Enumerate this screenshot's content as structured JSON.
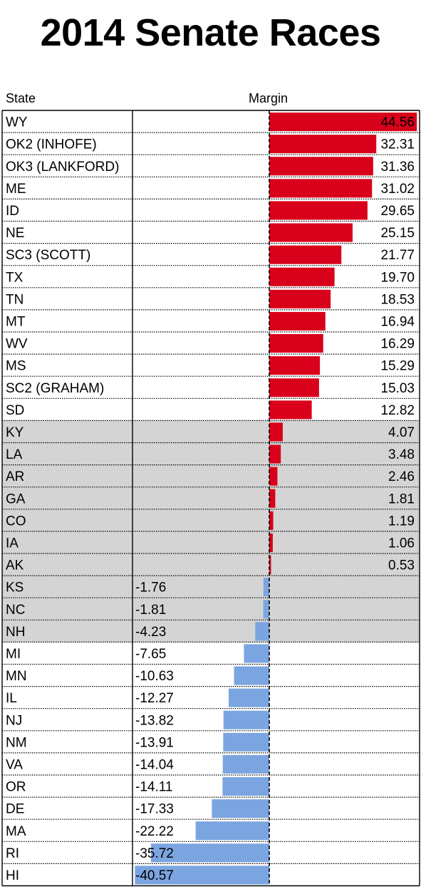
{
  "page": {
    "title": "2014 Senate Races"
  },
  "chart_data": {
    "type": "bar",
    "orientation": "horizontal",
    "title": "2014 Senate Races",
    "column_headers": {
      "category": "State",
      "value": "Margin"
    },
    "colors": {
      "positive": "#d9001b",
      "negative": "#7ba5e0",
      "highlight_row": "#d4d4d4"
    },
    "rows": [
      {
        "state": "WY",
        "value": 44.56,
        "label": "44.56",
        "highlight": false
      },
      {
        "state": "OK2 (INHOFE)",
        "value": 32.31,
        "label": "32.31",
        "highlight": false
      },
      {
        "state": "OK3 (LANKFORD)",
        "value": 31.36,
        "label": "31.36",
        "highlight": false
      },
      {
        "state": "ME",
        "value": 31.02,
        "label": "31.02",
        "highlight": false
      },
      {
        "state": "ID",
        "value": 29.65,
        "label": "29.65",
        "highlight": false
      },
      {
        "state": "NE",
        "value": 25.15,
        "label": "25.15",
        "highlight": false
      },
      {
        "state": "SC3 (SCOTT)",
        "value": 21.77,
        "label": "21.77",
        "highlight": false
      },
      {
        "state": "TX",
        "value": 19.7,
        "label": "19.70",
        "highlight": false
      },
      {
        "state": "TN",
        "value": 18.53,
        "label": "18.53",
        "highlight": false
      },
      {
        "state": "MT",
        "value": 16.94,
        "label": "16.94",
        "highlight": false
      },
      {
        "state": "WV",
        "value": 16.29,
        "label": "16.29",
        "highlight": false
      },
      {
        "state": "MS",
        "value": 15.29,
        "label": "15.29",
        "highlight": false
      },
      {
        "state": "SC2 (GRAHAM)",
        "value": 15.03,
        "label": "15.03",
        "highlight": false
      },
      {
        "state": "SD",
        "value": 12.82,
        "label": "12.82",
        "highlight": false
      },
      {
        "state": "KY",
        "value": 4.07,
        "label": "4.07",
        "highlight": true
      },
      {
        "state": "LA",
        "value": 3.48,
        "label": "3.48",
        "highlight": true
      },
      {
        "state": "AR",
        "value": 2.46,
        "label": "2.46",
        "highlight": true
      },
      {
        "state": "GA",
        "value": 1.81,
        "label": "1.81",
        "highlight": true
      },
      {
        "state": "CO",
        "value": 1.19,
        "label": "1.19",
        "highlight": true
      },
      {
        "state": "IA",
        "value": 1.06,
        "label": "1.06",
        "highlight": true
      },
      {
        "state": "AK",
        "value": 0.53,
        "label": "0.53",
        "highlight": true
      },
      {
        "state": "KS",
        "value": -1.76,
        "label": "-1.76",
        "highlight": true
      },
      {
        "state": "NC",
        "value": -1.81,
        "label": "-1.81",
        "highlight": true
      },
      {
        "state": "NH",
        "value": -4.23,
        "label": "-4.23",
        "highlight": true
      },
      {
        "state": "MI",
        "value": -7.65,
        "label": "-7.65",
        "highlight": false
      },
      {
        "state": "MN",
        "value": -10.63,
        "label": "-10.63",
        "highlight": false
      },
      {
        "state": "IL",
        "value": -12.27,
        "label": "-12.27",
        "highlight": false
      },
      {
        "state": "NJ",
        "value": -13.82,
        "label": "-13.82",
        "highlight": false
      },
      {
        "state": "NM",
        "value": -13.91,
        "label": "-13.91",
        "highlight": false
      },
      {
        "state": "VA",
        "value": -14.04,
        "label": "-14.04",
        "highlight": false
      },
      {
        "state": "OR",
        "value": -14.11,
        "label": "-14.11",
        "highlight": false
      },
      {
        "state": "DE",
        "value": -17.33,
        "label": "-17.33",
        "highlight": false
      },
      {
        "state": "MA",
        "value": -22.22,
        "label": "-22.22",
        "highlight": false
      },
      {
        "state": "RI",
        "value": -35.72,
        "label": "-35.72",
        "highlight": false
      },
      {
        "state": "HI",
        "value": -40.57,
        "label": "-40.57",
        "highlight": false
      }
    ]
  }
}
